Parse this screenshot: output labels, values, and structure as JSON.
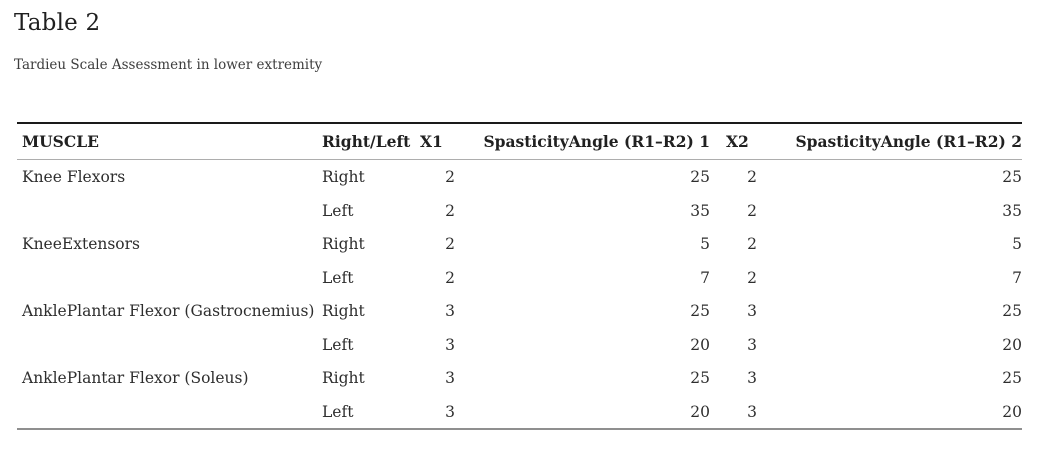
{
  "page": {
    "title": "Table 2",
    "subtitle": "Tardieu Scale Assessment in lower extremity"
  },
  "table": {
    "columns": [
      {
        "label": "MUSCLE"
      },
      {
        "label": "Right/Left"
      },
      {
        "label": "X1"
      },
      {
        "label": "SpasticityAngle (R1–R2) 1"
      },
      {
        "label": "X2"
      },
      {
        "label": "SpasticityAngle (R1–R2) 2"
      }
    ],
    "rows": [
      [
        "Knee Flexors",
        "Right",
        "2",
        "25",
        "2",
        "25"
      ],
      [
        "",
        "Left",
        "2",
        "35",
        "2",
        "35"
      ],
      [
        "KneeExtensors",
        "Right",
        "2",
        "5",
        "2",
        "5"
      ],
      [
        "",
        "Left",
        "2",
        "7",
        "2",
        "7"
      ],
      [
        "AnklePlantar Flexor (Gastrocnemius)",
        "Right",
        "3",
        "25",
        "3",
        "25"
      ],
      [
        "",
        "Left",
        "3",
        "20",
        "3",
        "20"
      ],
      [
        "AnklePlantar Flexor (Soleus)",
        "Right",
        "3",
        "25",
        "3",
        "25"
      ],
      [
        "",
        "Left",
        "3",
        "20",
        "3",
        "20"
      ]
    ]
  },
  "colors": {
    "rule_top": "#1a1a1a",
    "rule_header": "#adadad",
    "rule_bottom": "#8f8f8f",
    "text": "#2e2e2e"
  },
  "chart_data": {
    "type": "table",
    "title": "Table 2",
    "subtitle": "Tardieu Scale Assessment in lower extremity",
    "columns": [
      "MUSCLE",
      "Right/Left",
      "X1",
      "SpasticityAngle (R1–R2) 1",
      "X2",
      "SpasticityAngle (R1–R2) 2"
    ],
    "rows": [
      [
        "Knee Flexors",
        "Right",
        2,
        25,
        2,
        25
      ],
      [
        "Knee Flexors",
        "Left",
        2,
        35,
        2,
        35
      ],
      [
        "KneeExtensors",
        "Right",
        2,
        5,
        2,
        5
      ],
      [
        "KneeExtensors",
        "Left",
        2,
        7,
        2,
        7
      ],
      [
        "AnklePlantar Flexor (Gastrocnemius)",
        "Right",
        3,
        25,
        3,
        25
      ],
      [
        "AnklePlantar Flexor (Gastrocnemius)",
        "Left",
        3,
        20,
        3,
        20
      ],
      [
        "AnklePlantar Flexor (Soleus)",
        "Right",
        3,
        25,
        3,
        25
      ],
      [
        "AnklePlantar Flexor (Soleus)",
        "Left",
        3,
        20,
        3,
        20
      ]
    ]
  }
}
